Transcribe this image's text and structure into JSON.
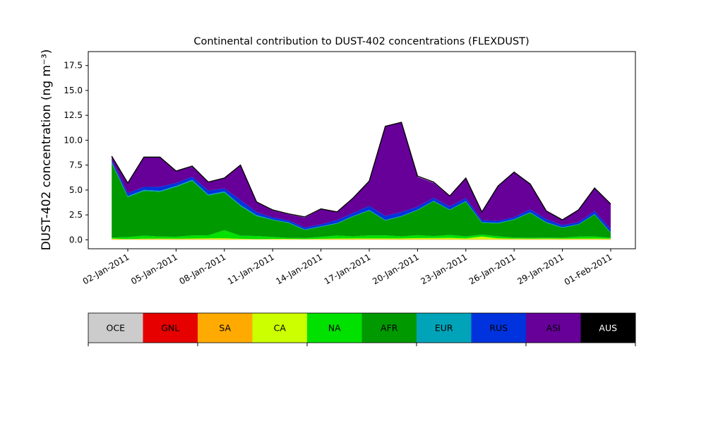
{
  "chart_data": {
    "type": "area",
    "stacked": true,
    "title": "Continental contribution to DUST-402 concentrations (FLEXDUST)",
    "ylabel": "DUST-402 concentration (ng m⁻³)",
    "xlabel": "",
    "x_range": [
      "2010-12-31",
      "2011-02-01"
    ],
    "ylim": [
      -0.9,
      18.9
    ],
    "y_ticks": [
      "0.0",
      "2.5",
      "5.0",
      "7.5",
      "10.0",
      "12.5",
      "15.0",
      "17.5"
    ],
    "x_ticks": [
      {
        "date": "2011-01-02",
        "label": "02-Jan-2011"
      },
      {
        "date": "2011-01-05",
        "label": "05-Jan-2011"
      },
      {
        "date": "2011-01-08",
        "label": "08-Jan-2011"
      },
      {
        "date": "2011-01-11",
        "label": "11-Jan-2011"
      },
      {
        "date": "2011-01-14",
        "label": "14-Jan-2011"
      },
      {
        "date": "2011-01-17",
        "label": "17-Jan-2011"
      },
      {
        "date": "2011-01-20",
        "label": "20-Jan-2011"
      },
      {
        "date": "2011-01-23",
        "label": "23-Jan-2011"
      },
      {
        "date": "2011-01-26",
        "label": "26-Jan-2011"
      },
      {
        "date": "2011-01-29",
        "label": "29-Jan-2011"
      },
      {
        "date": "2011-02-01",
        "label": "01-Feb-2011"
      }
    ],
    "x": [
      "2011-01-01",
      "2011-01-02",
      "2011-01-03",
      "2011-01-04",
      "2011-01-05",
      "2011-01-06",
      "2011-01-07",
      "2011-01-08",
      "2011-01-09",
      "2011-01-10",
      "2011-01-11",
      "2011-01-12",
      "2011-01-13",
      "2011-01-14",
      "2011-01-15",
      "2011-01-16",
      "2011-01-17",
      "2011-01-18",
      "2011-01-19",
      "2011-01-20",
      "2011-01-21",
      "2011-01-22",
      "2011-01-23",
      "2011-01-24",
      "2011-01-25",
      "2011-01-26",
      "2011-01-27",
      "2011-01-28",
      "2011-01-29",
      "2011-01-30",
      "2011-01-31",
      "2011-02-01"
    ],
    "total_series": {
      "x": [
        "2011-01-01",
        "2011-01-01",
        "2011-01-02",
        "2011-01-02",
        "2011-01-03",
        "2011-01-03",
        "2011-01-04",
        "2011-01-04",
        "2011-01-05",
        "2011-01-05",
        "2011-01-06",
        "2011-01-06",
        "2011-01-07",
        "2011-01-07",
        "2011-01-08",
        "2011-01-08",
        "2011-01-09",
        "2011-01-09",
        "2011-01-10",
        "2011-01-10",
        "2011-01-11",
        "2011-01-11",
        "2011-01-12",
        "2011-01-12",
        "2011-01-13",
        "2011-01-13",
        "2011-01-14",
        "2011-01-14",
        "2011-01-15",
        "2011-01-15",
        "2011-01-16",
        "2011-01-16",
        "2011-01-17",
        "2011-01-17",
        "2011-01-18",
        "2011-01-18",
        "2011-01-19",
        "2011-01-19",
        "2011-01-20",
        "2011-01-20",
        "2011-01-21",
        "2011-01-21",
        "2011-01-22",
        "2011-01-22",
        "2011-01-23",
        "2011-01-23",
        "2011-01-24",
        "2011-01-24",
        "2011-01-25",
        "2011-01-25",
        "2011-01-26",
        "2011-01-26",
        "2011-01-27",
        "2011-01-27",
        "2011-01-28",
        "2011-01-28",
        "2011-01-29",
        "2011-01-29",
        "2011-01-30",
        "2011-01-30",
        "2011-01-31",
        "2011-01-31",
        "2011-02-01"
      ],
      "note_dummy": null
    },
    "series": [
      {
        "name": "OCE",
        "values": [
          0.02,
          0.02,
          0.02,
          0.02,
          0.02,
          0.02,
          0.02,
          0.02,
          0.02,
          0.02,
          0.02,
          0.02,
          0.02,
          0.02,
          0.02,
          0.02,
          0.02,
          0.02,
          0.02,
          0.02,
          0.02,
          0.02,
          0.02,
          0.02,
          0.02,
          0.02,
          0.02,
          0.02,
          0.02,
          0.02,
          0.02,
          0.02
        ]
      },
      {
        "name": "GNL",
        "values": [
          0,
          0,
          0,
          0,
          0,
          0,
          0,
          0,
          0,
          0,
          0,
          0,
          0,
          0,
          0,
          0,
          0,
          0,
          0,
          0,
          0,
          0,
          0,
          0,
          0,
          0,
          0,
          0,
          0,
          0,
          0,
          0
        ]
      },
      {
        "name": "SA",
        "values": [
          0.05,
          0.03,
          0.04,
          0.05,
          0.04,
          0.05,
          0.05,
          0.04,
          0.03,
          0.03,
          0.03,
          0.03,
          0.03,
          0.03,
          0.05,
          0.04,
          0.06,
          0.05,
          0.04,
          0.05,
          0.05,
          0.05,
          0.04,
          0.05,
          0.05,
          0.05,
          0.04,
          0.05,
          0.04,
          0.05,
          0.05,
          0.04
        ]
      },
      {
        "name": "CA",
        "values": [
          0.05,
          0.03,
          0.05,
          0.05,
          0.05,
          0.06,
          0.08,
          0.1,
          0.05,
          0.03,
          0.04,
          0.04,
          0.03,
          0.05,
          0.06,
          0.08,
          0.06,
          0.07,
          0.08,
          0.1,
          0.1,
          0.12,
          0.08,
          0.25,
          0.08,
          0.05,
          0.05,
          0.05,
          0.05,
          0.05,
          0.06,
          0.05
        ]
      },
      {
        "name": "NA",
        "values": [
          0.1,
          0.2,
          0.3,
          0.2,
          0.2,
          0.3,
          0.3,
          0.8,
          0.3,
          0.3,
          0.2,
          0.1,
          0.1,
          0.2,
          0.3,
          0.2,
          0.3,
          0.3,
          0.2,
          0.3,
          0.2,
          0.3,
          0.2,
          0.2,
          0.2,
          0.1,
          0.1,
          0.1,
          0.1,
          0.2,
          0.2,
          0.1
        ]
      },
      {
        "name": "AFR",
        "values": [
          7.5,
          4.0,
          4.5,
          4.5,
          5.0,
          5.5,
          4.0,
          3.8,
          3.0,
          2.0,
          1.7,
          1.5,
          0.8,
          1.0,
          1.2,
          2.0,
          2.5,
          1.5,
          2.0,
          2.5,
          3.5,
          2.5,
          3.5,
          1.2,
          1.3,
          1.8,
          2.5,
          1.5,
          1.0,
          1.2,
          2.2,
          0.5
        ]
      },
      {
        "name": "EUR",
        "values": [
          0.1,
          0.1,
          0.1,
          0.1,
          0.1,
          0.1,
          0.1,
          0.1,
          0.1,
          0.1,
          0.05,
          0.05,
          0.05,
          0.05,
          0.05,
          0.05,
          0.05,
          0.05,
          0.05,
          0.05,
          0.05,
          0.05,
          0.05,
          0.05,
          0.05,
          0.05,
          0.05,
          0.05,
          0.05,
          0.05,
          0.05,
          0.05
        ]
      },
      {
        "name": "RUS",
        "values": [
          0.2,
          0.3,
          0.3,
          0.4,
          0.3,
          0.3,
          0.4,
          0.3,
          0.5,
          0.3,
          0.2,
          0.2,
          0.2,
          0.2,
          0.3,
          0.3,
          0.4,
          0.4,
          0.4,
          0.3,
          0.3,
          0.3,
          0.3,
          0.2,
          0.2,
          0.2,
          0.3,
          0.3,
          0.2,
          0.2,
          0.3,
          0.3
        ]
      },
      {
        "name": "ASI",
        "values": [
          0.4,
          1.0,
          3.0,
          3.0,
          1.2,
          1.0,
          0.8,
          1.0,
          3.5,
          1.0,
          0.7,
          0.6,
          1.0,
          1.5,
          0.8,
          1.5,
          2.5,
          9.0,
          9.0,
          3.0,
          1.5,
          1.0,
          2.0,
          0.8,
          3.5,
          4.5,
          2.5,
          0.8,
          0.5,
          1.2,
          2.3,
          2.5
        ]
      },
      {
        "name": "AUS",
        "values": [
          0,
          0,
          0,
          0,
          0,
          0,
          0,
          0,
          0,
          0,
          0,
          0,
          0,
          0,
          0,
          0,
          0,
          0,
          0,
          0,
          0,
          0,
          0,
          0,
          0,
          0,
          0,
          0,
          0,
          0,
          0,
          0
        ]
      }
    ],
    "total_values": [
      8.4,
      5.7,
      8.3,
      8.3,
      6.9,
      7.4,
      5.8,
      6.2,
      7.5,
      3.8,
      3.0,
      2.6,
      2.3,
      3.1,
      2.8,
      4.2,
      5.9,
      11.4,
      11.8,
      6.4,
      5.8,
      4.4,
      6.2,
      2.8,
      5.4,
      6.8,
      5.6,
      2.9,
      2.0,
      3.0,
      5.2,
      3.6
    ],
    "legend": {
      "placement": "bottom",
      "entries": [
        {
          "label": "OCE",
          "color": "#cccccc"
        },
        {
          "label": "GNL",
          "color": "#e60000"
        },
        {
          "label": "SA",
          "color": "#ffaa00"
        },
        {
          "label": "CA",
          "color": "#ccff00"
        },
        {
          "label": "NA",
          "color": "#00e100"
        },
        {
          "label": "AFR",
          "color": "#009900"
        },
        {
          "label": "EUR",
          "color": "#00a3b8"
        },
        {
          "label": "RUS",
          "color": "#0033dd"
        },
        {
          "label": "ASI",
          "color": "#660099"
        },
        {
          "label": "AUS",
          "color": "#000000"
        }
      ]
    },
    "grid": false
  }
}
